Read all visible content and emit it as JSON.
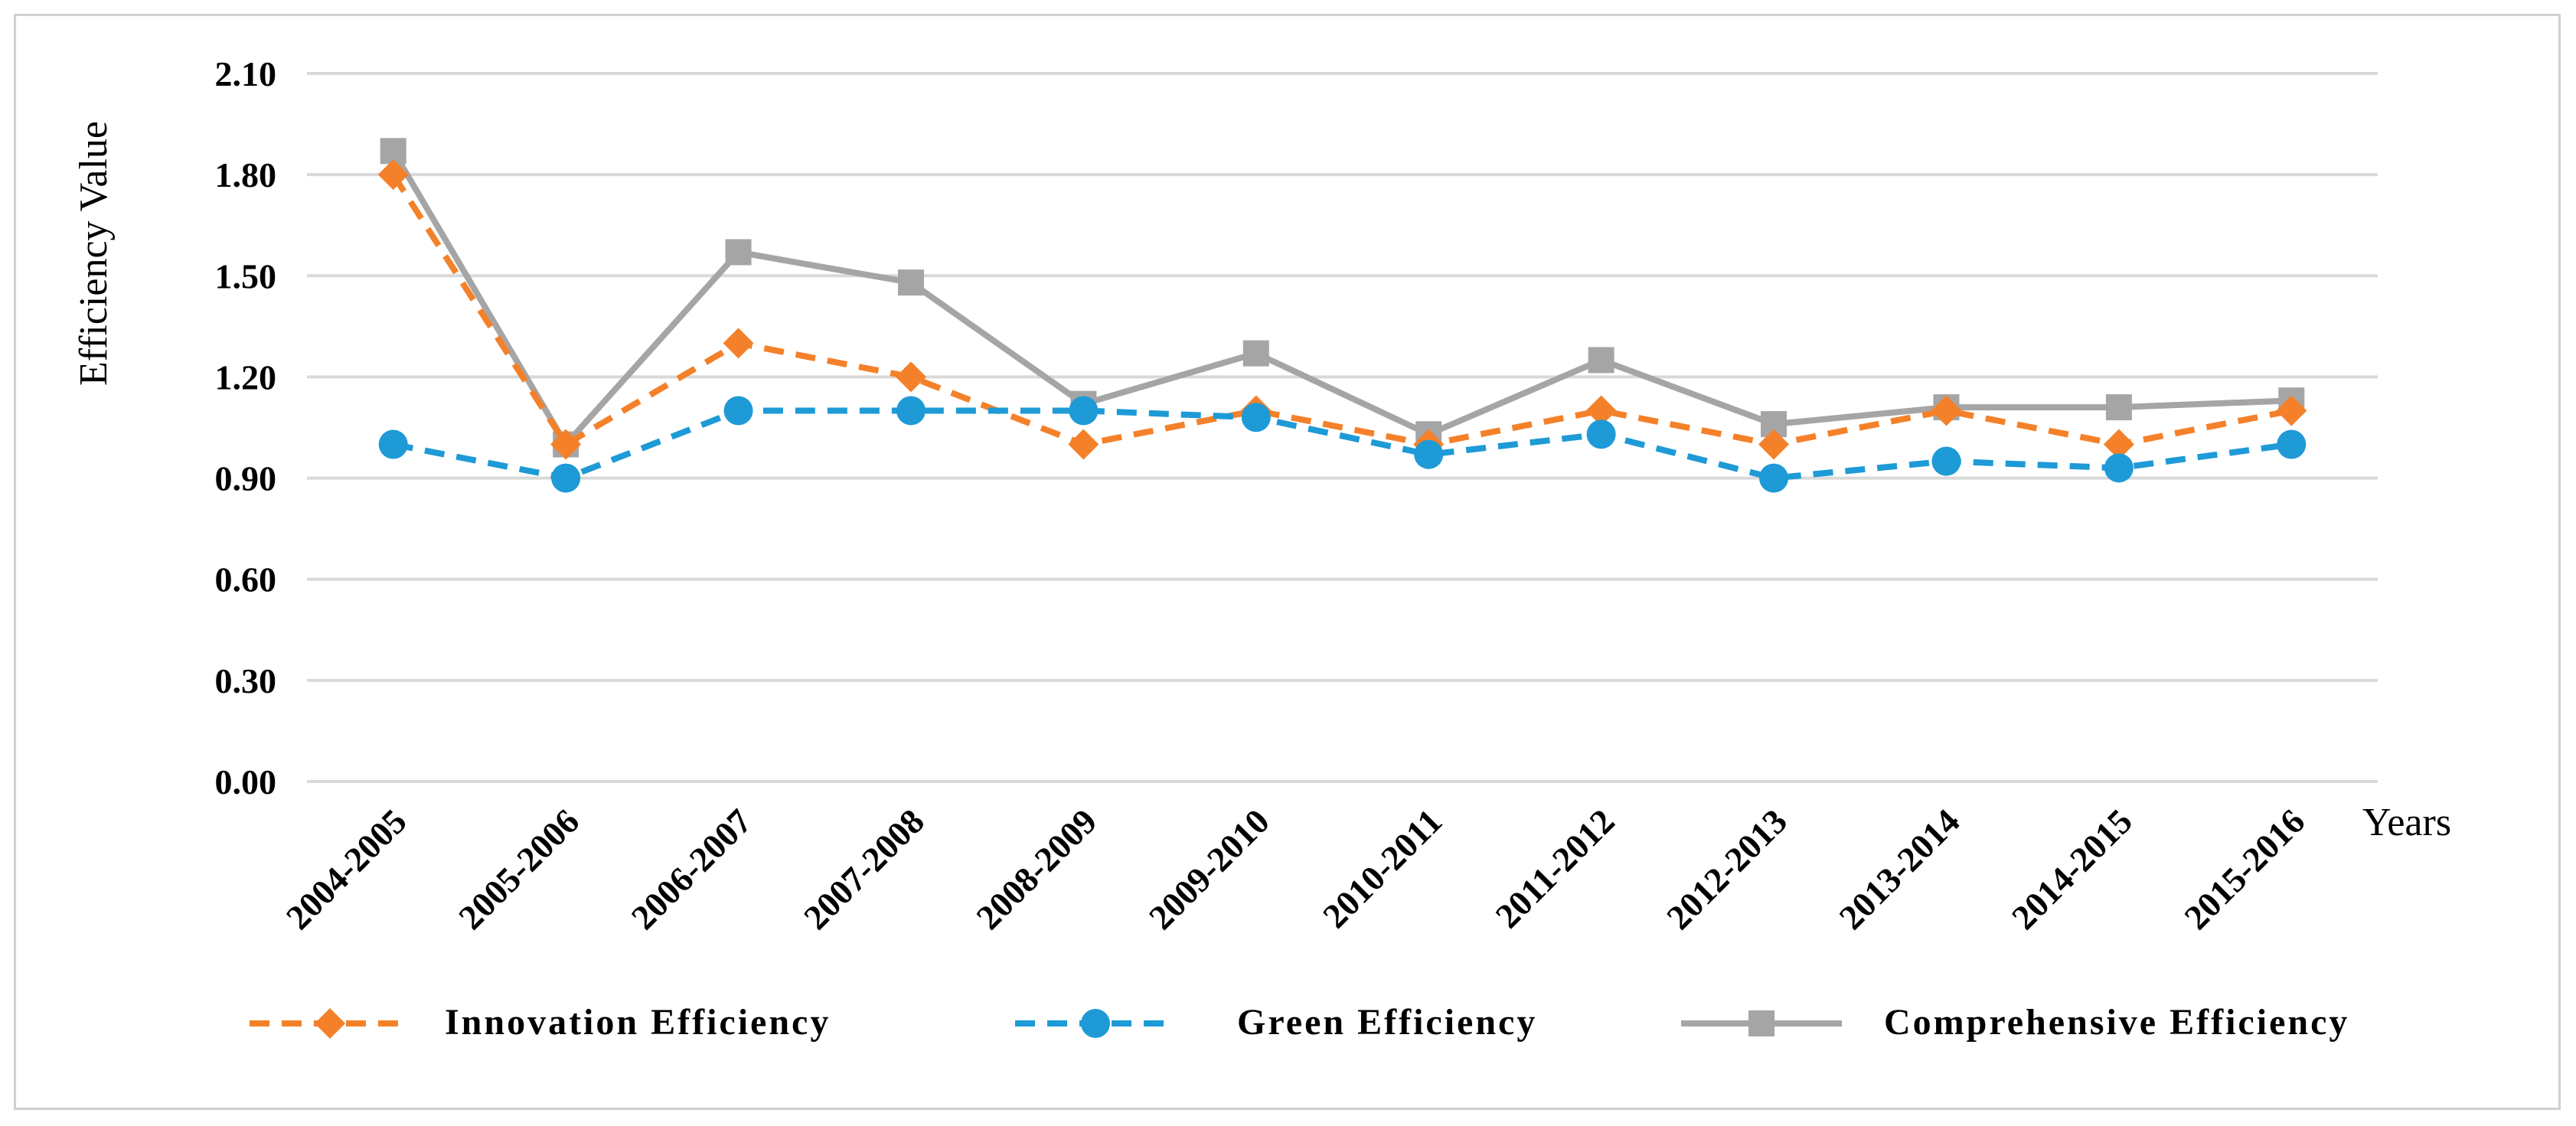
{
  "chart_data": {
    "type": "line",
    "title": "",
    "ylabel": "Efficiency Value",
    "xlabel": "Years",
    "ylim": [
      0,
      2.1
    ],
    "yticks": [
      "0.00",
      "0.30",
      "0.60",
      "0.90",
      "1.20",
      "1.50",
      "1.80",
      "2.10"
    ],
    "ytick_values": [
      0,
      0.3,
      0.6,
      0.9,
      1.2,
      1.5,
      1.8,
      2.1
    ],
    "grid": true,
    "legend_position": "bottom",
    "categories": [
      "2004-2005",
      "2005-2006",
      "2006-2007",
      "2007-2008",
      "2008-2009",
      "2009-2010",
      "2010-2011",
      "2011-2012",
      "2012-2013",
      "2013-2014",
      "2014-2015",
      "2015-2016"
    ],
    "series": [
      {
        "name": "Innovation Efficiency",
        "color": "#f4812a",
        "line": "dashed",
        "marker": "diamond",
        "values": [
          1.8,
          1.0,
          1.3,
          1.2,
          1.0,
          1.1,
          1.0,
          1.1,
          1.0,
          1.1,
          1.0,
          1.1
        ]
      },
      {
        "name": "Green Efficiency",
        "color": "#1e9ad6",
        "line": "dashed",
        "marker": "circle",
        "values": [
          1.0,
          0.9,
          1.1,
          1.1,
          1.1,
          1.08,
          0.97,
          1.03,
          0.9,
          0.95,
          0.93,
          1.0
        ]
      },
      {
        "name": "Comprehensive Efficiency",
        "color": "#a5a5a5",
        "line": "solid",
        "marker": "square",
        "values": [
          1.87,
          1.0,
          1.57,
          1.48,
          1.12,
          1.27,
          1.03,
          1.25,
          1.06,
          1.11,
          1.11,
          1.13
        ]
      }
    ]
  }
}
